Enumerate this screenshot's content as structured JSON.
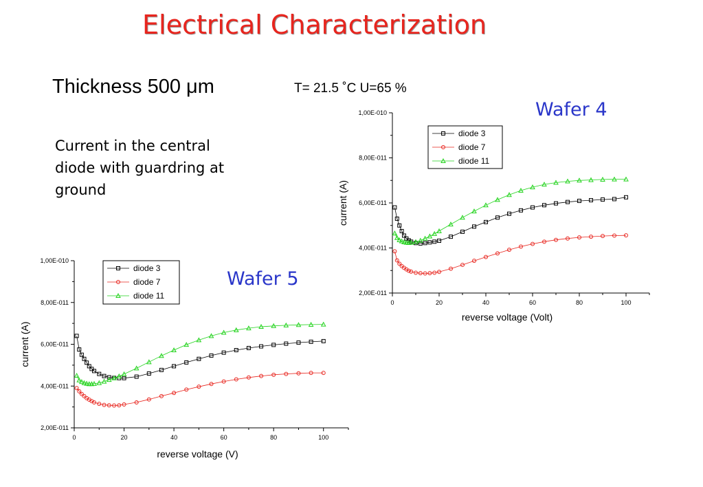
{
  "slide": {
    "title": "Electrical Characterization",
    "thickness": "Thickness 500 μm",
    "conditions": "T= 21.5 ˚C   U=65 %",
    "description": "Current in the central diode with guardring at ground",
    "wafer4_label": "Wafer 4",
    "wafer5_label": "Wafer 5"
  },
  "colors": {
    "title": "#e8251e",
    "wafer_label": "#2a36c9",
    "diode3": "#000000",
    "diode7": "#e8251e",
    "diode11": "#22d31c"
  },
  "chart_data": [
    {
      "id": "wafer4",
      "type": "line",
      "xlabel": "reverse voltage (Volt)",
      "ylabel": "current (A)",
      "xlim": [
        0,
        110
      ],
      "ylim": [
        2e-11,
        1e-10
      ],
      "xticks": [
        0,
        20,
        40,
        60,
        80,
        100
      ],
      "xtick_labels": [
        "0",
        "20",
        "40",
        "60",
        "80",
        "100"
      ],
      "yticks": [
        2e-11,
        4e-11,
        6e-11,
        8e-11,
        1e-10
      ],
      "ytick_labels": [
        "2,00E-011",
        "4,00E-011",
        "6,00E-011",
        "8,00E-011",
        "1,00E-010"
      ],
      "grid": false,
      "legend_position": "top-center",
      "series": [
        {
          "name": "diode 3",
          "marker": "square",
          "color": "#000000",
          "x": [
            1,
            2,
            3,
            4,
            5,
            6,
            7,
            8,
            10,
            12,
            14,
            16,
            18,
            20,
            25,
            30,
            35,
            40,
            45,
            50,
            55,
            60,
            65,
            70,
            75,
            80,
            85,
            90,
            95,
            100
          ],
          "y": [
            5.8e-11,
            5.3e-11,
            5e-11,
            4.75e-11,
            4.55e-11,
            4.42e-11,
            4.34e-11,
            4.28e-11,
            4.22e-11,
            4.2e-11,
            4.22e-11,
            4.25e-11,
            4.28e-11,
            4.32e-11,
            4.5e-11,
            4.72e-11,
            4.95e-11,
            5.15e-11,
            5.35e-11,
            5.52e-11,
            5.67e-11,
            5.8e-11,
            5.9e-11,
            5.98e-11,
            6.04e-11,
            6.09e-11,
            6.12e-11,
            6.15e-11,
            6.17e-11,
            6.25e-11
          ]
        },
        {
          "name": "diode 7",
          "marker": "circle",
          "color": "#e8251e",
          "x": [
            1,
            2,
            3,
            4,
            5,
            6,
            7,
            8,
            10,
            12,
            14,
            16,
            18,
            20,
            25,
            30,
            35,
            40,
            45,
            50,
            55,
            60,
            65,
            70,
            75,
            80,
            85,
            90,
            95,
            100
          ],
          "y": [
            3.85e-11,
            3.45e-11,
            3.3e-11,
            3.2e-11,
            3.12e-11,
            3.05e-11,
            2.99e-11,
            2.95e-11,
            2.9e-11,
            2.88e-11,
            2.87e-11,
            2.88e-11,
            2.9e-11,
            2.94e-11,
            3.08e-11,
            3.25e-11,
            3.43e-11,
            3.6e-11,
            3.76e-11,
            3.92e-11,
            4.06e-11,
            4.18e-11,
            4.28e-11,
            4.36e-11,
            4.42e-11,
            4.47e-11,
            4.5e-11,
            4.53e-11,
            4.55e-11,
            4.56e-11
          ]
        },
        {
          "name": "diode 11",
          "marker": "triangle",
          "color": "#22d31c",
          "x": [
            1,
            2,
            3,
            4,
            5,
            6,
            7,
            8,
            10,
            12,
            14,
            16,
            18,
            20,
            25,
            30,
            35,
            40,
            45,
            50,
            55,
            60,
            65,
            70,
            75,
            80,
            85,
            90,
            95,
            100
          ],
          "y": [
            4.65e-11,
            4.45e-11,
            4.35e-11,
            4.3e-11,
            4.26e-11,
            4.24e-11,
            4.23e-11,
            4.24e-11,
            4.27e-11,
            4.33e-11,
            4.42e-11,
            4.52e-11,
            4.63e-11,
            4.75e-11,
            5.05e-11,
            5.35e-11,
            5.63e-11,
            5.9e-11,
            6.14e-11,
            6.36e-11,
            6.55e-11,
            6.7e-11,
            6.82e-11,
            6.9e-11,
            6.96e-11,
            7e-11,
            7.02e-11,
            7.04e-11,
            7.05e-11,
            7.05e-11
          ]
        }
      ]
    },
    {
      "id": "wafer5",
      "type": "line",
      "xlabel": "reverse voltage (V)",
      "ylabel": "current (A)",
      "xlim": [
        0,
        110
      ],
      "ylim": [
        2e-11,
        1e-10
      ],
      "xticks": [
        0,
        20,
        40,
        60,
        80,
        100
      ],
      "xtick_labels": [
        "0",
        "20",
        "40",
        "60",
        "80",
        "100"
      ],
      "yticks": [
        2e-11,
        4e-11,
        6e-11,
        8e-11,
        1e-10
      ],
      "ytick_labels": [
        "2,00E-011",
        "4,00E-011",
        "6,00E-011",
        "8,00E-011",
        "1,00E-010"
      ],
      "grid": false,
      "legend_position": "top-center",
      "series": [
        {
          "name": "diode 3",
          "marker": "square",
          "color": "#000000",
          "x": [
            1,
            2,
            3,
            4,
            5,
            6,
            7,
            8,
            10,
            12,
            14,
            16,
            18,
            20,
            25,
            30,
            35,
            40,
            45,
            50,
            55,
            60,
            65,
            70,
            75,
            80,
            85,
            90,
            95,
            100
          ],
          "y": [
            6.4e-11,
            5.75e-11,
            5.5e-11,
            5.3e-11,
            5.12e-11,
            4.95e-11,
            4.82e-11,
            4.72e-11,
            4.58e-11,
            4.48e-11,
            4.42e-11,
            4.39e-11,
            4.38e-11,
            4.38e-11,
            4.45e-11,
            4.6e-11,
            4.77e-11,
            4.95e-11,
            5.13e-11,
            5.3e-11,
            5.46e-11,
            5.6e-11,
            5.72e-11,
            5.82e-11,
            5.9e-11,
            5.97e-11,
            6.03e-11,
            6.08e-11,
            6.12e-11,
            6.15e-11
          ]
        },
        {
          "name": "diode 7",
          "marker": "circle",
          "color": "#e8251e",
          "x": [
            1,
            2,
            3,
            4,
            5,
            6,
            7,
            8,
            10,
            12,
            14,
            16,
            18,
            20,
            25,
            30,
            35,
            40,
            45,
            50,
            55,
            60,
            65,
            70,
            75,
            80,
            85,
            90,
            95,
            100
          ],
          "y": [
            3.9e-11,
            3.75e-11,
            3.62e-11,
            3.52e-11,
            3.42e-11,
            3.35e-11,
            3.28e-11,
            3.22e-11,
            3.15e-11,
            3.1e-11,
            3.08e-11,
            3.07e-11,
            3.08e-11,
            3.12e-11,
            3.22e-11,
            3.36e-11,
            3.52e-11,
            3.67e-11,
            3.83e-11,
            3.97e-11,
            4.1e-11,
            4.22e-11,
            4.32e-11,
            4.41e-11,
            4.48e-11,
            4.54e-11,
            4.58e-11,
            4.61e-11,
            4.63e-11,
            4.63e-11
          ]
        },
        {
          "name": "diode 11",
          "marker": "triangle",
          "color": "#22d31c",
          "x": [
            1,
            2,
            3,
            4,
            5,
            6,
            7,
            8,
            10,
            12,
            14,
            16,
            18,
            20,
            25,
            30,
            35,
            40,
            45,
            50,
            55,
            60,
            65,
            70,
            75,
            80,
            85,
            90,
            95,
            100
          ],
          "y": [
            4.5e-11,
            4.28e-11,
            4.2e-11,
            4.15e-11,
            4.12e-11,
            4.1e-11,
            4.1e-11,
            4.11e-11,
            4.15e-11,
            4.22e-11,
            4.3e-11,
            4.38e-11,
            4.47e-11,
            4.57e-11,
            4.85e-11,
            5.15e-11,
            5.45e-11,
            5.72e-11,
            5.98e-11,
            6.2e-11,
            6.4e-11,
            6.56e-11,
            6.68e-11,
            6.77e-11,
            6.84e-11,
            6.88e-11,
            6.91e-11,
            6.93e-11,
            6.94e-11,
            6.95e-11
          ]
        }
      ]
    }
  ]
}
